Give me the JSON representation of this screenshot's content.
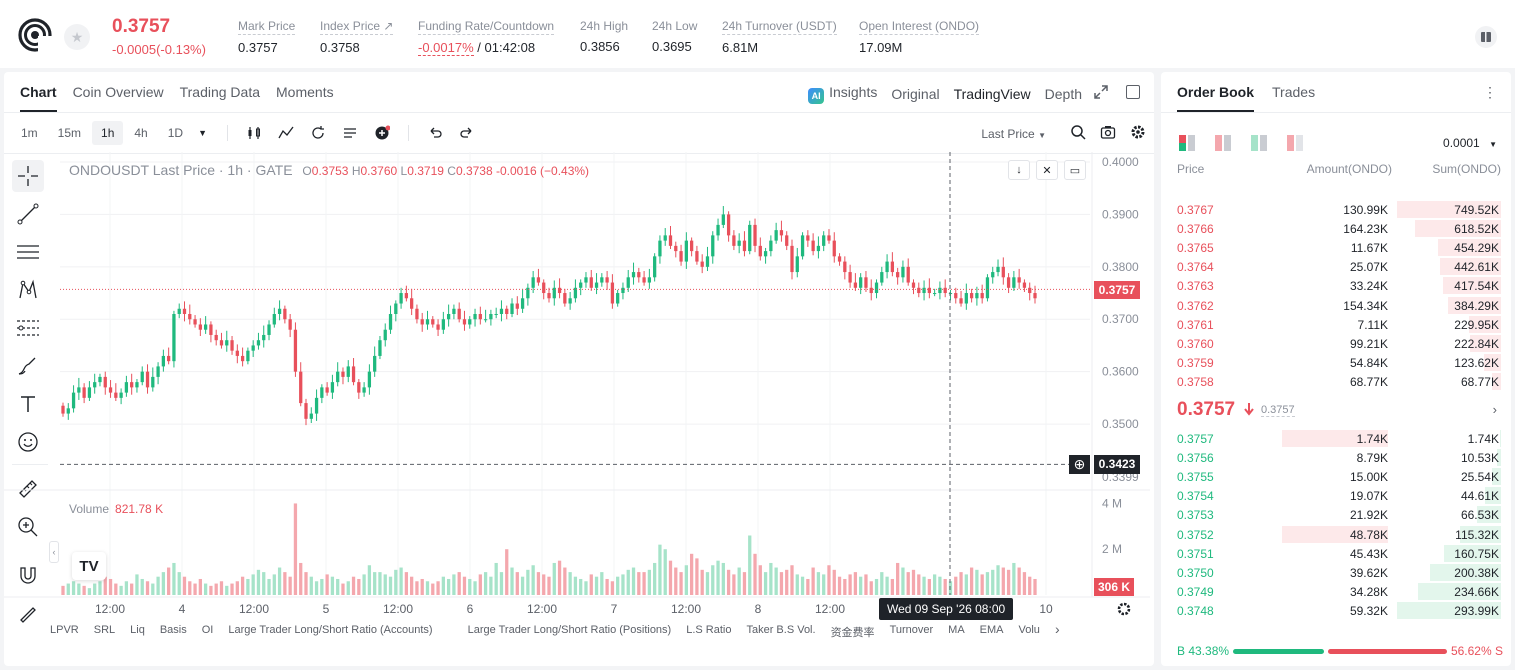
{
  "ticker": {
    "last_price": "0.3757",
    "change": "-0.0005(-0.13%)",
    "stats": [
      {
        "label": "Mark Price",
        "value": "0.3757"
      },
      {
        "label": "Index Price ↗",
        "value": "0.3758"
      },
      {
        "label": "Funding Rate/Countdown",
        "value_red": "-0.0017%",
        "value": "/ 01:42:08"
      },
      {
        "label": "24h High",
        "value": "0.3856"
      },
      {
        "label": "24h Low",
        "value": "0.3695"
      },
      {
        "label": "24h Turnover (USDT)",
        "value": "6.81M"
      },
      {
        "label": "Open Interest (ONDO)",
        "value": "17.09M"
      }
    ]
  },
  "chart_tabs": [
    "Chart",
    "Coin Overview",
    "Trading Data",
    "Moments"
  ],
  "view_tabs": {
    "insights": "Insights",
    "original": "Original",
    "tradingview": "TradingView",
    "depth": "Depth",
    "ai_badge": "AI"
  },
  "timeframes": [
    "1m",
    "15m",
    "1h",
    "4h",
    "1D"
  ],
  "active_timeframe": "1h",
  "price_type": "Last Price",
  "legend": {
    "symbol": "ONDOUSDT Last Price · 1h · GATE",
    "o_label": "O",
    "o": "0.3753",
    "h_label": "H",
    "h": "0.3760",
    "l_label": "L",
    "l": "0.3719",
    "c_label": "C",
    "c": "0.3738",
    "chg": "-0.0016 (−0.43%)"
  },
  "volume_legend": {
    "label": "Volume",
    "value": "821.78 K"
  },
  "price_axis": [
    "0.4000",
    "0.3900",
    "0.3800",
    "0.3700",
    "0.3600",
    "0.3500",
    "0.3399"
  ],
  "volume_axis": [
    "4 M",
    "2 M"
  ],
  "time_axis": [
    "12:00",
    "4",
    "12:00",
    "5",
    "12:00",
    "6",
    "12:00",
    "7",
    "12:00",
    "8",
    "12:00",
    "10"
  ],
  "last_price_tag": "0.3757",
  "cursor_price_tag": "0.3423",
  "volume_tag": "306 K",
  "cursor_time": "Wed 09 Sep '26   08:00",
  "tv_logo": "TV",
  "indicators": [
    "LPVR",
    "SRL",
    "Liq",
    "Basis",
    "OI",
    "Large Trader Long/Short Ratio (Accounts)",
    "Large Trader Long/Short Ratio (Positions)",
    "L.S Ratio",
    "Taker B.S Vol.",
    "资金费率",
    "Turnover",
    "MA",
    "EMA",
    "Volu"
  ],
  "colors": {
    "up": "#1fb97e",
    "down": "#e8505b",
    "up_vol": "#a6e3c9",
    "down_vol": "#f4a7ad"
  },
  "chart_data": {
    "type": "candlestick",
    "symbol": "ONDOUSDT",
    "interval": "1h",
    "price_ylim": [
      0.3399,
      0.4
    ],
    "volume_ylim_M": [
      0,
      4.5
    ],
    "seed_closes": [
      0.352,
      0.353,
      0.356,
      0.357,
      0.355,
      0.357,
      0.358,
      0.359,
      0.357,
      0.356,
      0.355,
      0.356,
      0.358,
      0.357,
      0.358,
      0.36,
      0.357,
      0.359,
      0.361,
      0.363,
      0.362,
      0.371,
      0.372,
      0.371,
      0.37,
      0.369,
      0.368,
      0.369,
      0.367,
      0.366,
      0.365,
      0.366,
      0.364,
      0.363,
      0.362,
      0.364,
      0.365,
      0.366,
      0.367,
      0.369,
      0.371,
      0.372,
      0.37,
      0.368,
      0.36,
      0.354,
      0.351,
      0.352,
      0.355,
      0.357,
      0.356,
      0.358,
      0.36,
      0.359,
      0.361,
      0.358,
      0.356,
      0.357,
      0.36,
      0.363,
      0.366,
      0.368,
      0.371,
      0.373,
      0.375,
      0.374,
      0.372,
      0.37,
      0.369,
      0.37,
      0.369,
      0.368,
      0.37,
      0.371,
      0.372,
      0.37,
      0.369,
      0.37,
      0.371,
      0.37,
      0.37,
      0.371,
      0.371,
      0.372,
      0.371,
      0.373,
      0.372,
      0.374,
      0.376,
      0.378,
      0.377,
      0.375,
      0.374,
      0.376,
      0.375,
      0.373,
      0.374,
      0.376,
      0.377,
      0.378,
      0.376,
      0.377,
      0.378,
      0.377,
      0.373,
      0.375,
      0.376,
      0.378,
      0.379,
      0.378,
      0.377,
      0.378,
      0.382,
      0.385,
      0.386,
      0.384,
      0.383,
      0.381,
      0.385,
      0.383,
      0.381,
      0.38,
      0.382,
      0.386,
      0.388,
      0.39,
      0.386,
      0.384,
      0.385,
      0.383,
      0.388,
      0.384,
      0.382,
      0.383,
      0.385,
      0.387,
      0.386,
      0.384,
      0.379,
      0.382,
      0.386,
      0.385,
      0.383,
      0.384,
      0.386,
      0.385,
      0.382,
      0.381,
      0.379,
      0.377,
      0.376,
      0.378,
      0.376,
      0.375,
      0.377,
      0.379,
      0.381,
      0.379,
      0.378,
      0.38,
      0.377,
      0.376,
      0.375,
      0.376,
      0.375,
      0.375,
      0.376,
      0.375,
      0.375,
      0.374,
      0.373,
      0.375,
      0.374,
      0.375,
      0.374,
      0.378,
      0.379,
      0.38,
      0.378,
      0.376,
      0.378,
      0.377,
      0.376,
      0.375,
      0.374
    ],
    "seed_volumes_M": [
      0.4,
      0.5,
      0.6,
      0.5,
      0.4,
      0.3,
      0.5,
      0.6,
      0.8,
      0.7,
      0.5,
      0.4,
      0.6,
      0.5,
      0.9,
      0.7,
      0.6,
      0.5,
      0.8,
      1.0,
      1.2,
      1.4,
      1.0,
      0.8,
      0.6,
      0.5,
      0.7,
      0.5,
      0.4,
      0.5,
      0.6,
      0.4,
      0.5,
      0.6,
      0.8,
      0.7,
      0.9,
      1.1,
      1.0,
      0.7,
      0.9,
      1.2,
      1.0,
      0.8,
      4.0,
      1.4,
      1.0,
      0.8,
      0.6,
      0.7,
      0.9,
      0.8,
      0.7,
      0.5,
      0.6,
      0.8,
      0.7,
      0.9,
      1.3,
      1.0,
      1.0,
      0.9,
      0.8,
      1.1,
      1.2,
      1.0,
      0.8,
      0.6,
      0.7,
      0.6,
      0.5,
      0.6,
      0.8,
      0.7,
      0.9,
      1.0,
      0.8,
      0.7,
      0.6,
      0.9,
      1.0,
      0.8,
      1.4,
      1.0,
      2.0,
      1.2,
      1.0,
      0.8,
      1.1,
      1.3,
      1.0,
      0.9,
      0.8,
      1.4,
      1.5,
      1.2,
      1.0,
      0.8,
      0.7,
      0.6,
      0.9,
      0.8,
      1.0,
      0.7,
      0.6,
      0.8,
      0.9,
      1.1,
      1.2,
      1.0,
      1.0,
      1.1,
      1.4,
      2.2,
      2.0,
      1.5,
      1.2,
      1.0,
      1.3,
      1.8,
      1.6,
      1.1,
      1.0,
      1.3,
      1.5,
      1.4,
      1.1,
      0.9,
      1.2,
      1.0,
      2.6,
      1.8,
      1.3,
      1.0,
      1.4,
      1.2,
      1.0,
      1.1,
      1.3,
      0.9,
      0.8,
      0.7,
      1.2,
      1.0,
      0.9,
      1.3,
      1.1,
      0.8,
      0.7,
      0.9,
      1.0,
      0.8,
      0.9,
      0.6,
      0.7,
      1.0,
      0.8,
      0.7,
      1.4,
      1.2,
      1.0,
      1.1,
      0.9,
      0.8,
      0.7,
      0.9,
      0.8,
      0.7,
      0.6,
      0.8,
      1.0,
      0.9,
      1.2,
      1.1,
      0.9,
      1.0,
      1.1,
      1.3,
      1.2,
      1.1,
      1.4,
      1.2,
      1.0,
      0.8,
      0.7,
      0.3
    ]
  },
  "order_book": {
    "tabs": [
      "Order Book",
      "Trades"
    ],
    "tick_size": "0.0001",
    "headers": {
      "price": "Price",
      "amount": "Amount(ONDO)",
      "sum": "Sum(ONDO)"
    },
    "asks": [
      {
        "price": "0.3767",
        "amount": "130.99K",
        "sum": "749.52K",
        "depth": 1.0
      },
      {
        "price": "0.3766",
        "amount": "164.23K",
        "sum": "618.52K",
        "depth": 0.83
      },
      {
        "price": "0.3765",
        "amount": "11.67K",
        "sum": "454.29K",
        "depth": 0.61
      },
      {
        "price": "0.3764",
        "amount": "25.07K",
        "sum": "442.61K",
        "depth": 0.59
      },
      {
        "price": "0.3763",
        "amount": "33.24K",
        "sum": "417.54K",
        "depth": 0.56
      },
      {
        "price": "0.3762",
        "amount": "154.34K",
        "sum": "384.29K",
        "depth": 0.51
      },
      {
        "price": "0.3761",
        "amount": "7.11K",
        "sum": "229.95K",
        "depth": 0.31
      },
      {
        "price": "0.3760",
        "amount": "99.21K",
        "sum": "222.84K",
        "depth": 0.3
      },
      {
        "price": "0.3759",
        "amount": "54.84K",
        "sum": "123.62K",
        "depth": 0.16
      },
      {
        "price": "0.3758",
        "amount": "68.77K",
        "sum": "68.77K",
        "depth": 0.09
      }
    ],
    "mid_price": "0.3757",
    "mid_ref": "0.3757",
    "bids": [
      {
        "price": "0.3757",
        "amount": "1.74K",
        "sum": "1.74K",
        "depth": 0.01,
        "highlight": true
      },
      {
        "price": "0.3756",
        "amount": "8.79K",
        "sum": "10.53K",
        "depth": 0.04
      },
      {
        "price": "0.3755",
        "amount": "15.00K",
        "sum": "25.54K",
        "depth": 0.09
      },
      {
        "price": "0.3754",
        "amount": "19.07K",
        "sum": "44.61K",
        "depth": 0.15
      },
      {
        "price": "0.3753",
        "amount": "21.92K",
        "sum": "66.53K",
        "depth": 0.23
      },
      {
        "price": "0.3752",
        "amount": "48.78K",
        "sum": "115.32K",
        "depth": 0.39,
        "highlight": true
      },
      {
        "price": "0.3751",
        "amount": "45.43K",
        "sum": "160.75K",
        "depth": 0.55
      },
      {
        "price": "0.3750",
        "amount": "39.62K",
        "sum": "200.38K",
        "depth": 0.68
      },
      {
        "price": "0.3749",
        "amount": "34.28K",
        "sum": "234.66K",
        "depth": 0.8
      },
      {
        "price": "0.3748",
        "amount": "59.32K",
        "sum": "293.99K",
        "depth": 1.0
      }
    ],
    "buy_label": "B 43.38%",
    "sell_label": "56.62% S",
    "buy_ratio": 0.4338
  }
}
